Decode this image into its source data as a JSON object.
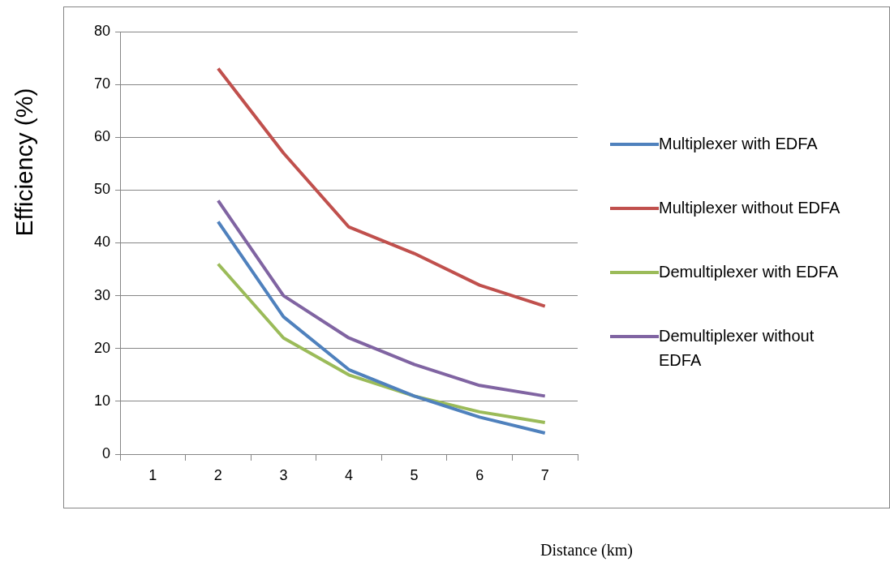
{
  "chart_data": {
    "type": "line",
    "xlabel": "Distance (km)",
    "ylabel": "Efficiency (%)",
    "categories": [
      "1",
      "2",
      "3",
      "4",
      "5",
      "6",
      "7"
    ],
    "series": [
      {
        "name": "Multiplexer with EDFA",
        "color": "#4f81bd",
        "values": [
          null,
          44,
          26,
          16,
          11,
          7,
          4
        ]
      },
      {
        "name": "Multiplexer without EDFA",
        "color": "#c0504d",
        "values": [
          null,
          73,
          57,
          43,
          38,
          32,
          28
        ]
      },
      {
        "name": "Demultiplexer with EDFA",
        "color": "#9bbb59",
        "values": [
          null,
          36,
          22,
          15,
          11,
          8,
          6
        ]
      },
      {
        "name": "Demultiplexer without EDFA",
        "color": "#8064a2",
        "values": [
          null,
          48,
          30,
          22,
          17,
          13,
          11
        ]
      }
    ],
    "ylim": [
      0,
      80
    ],
    "yticks": [
      0,
      10,
      20,
      30,
      40,
      50,
      60,
      70,
      80
    ],
    "grid": "y",
    "legend": "right",
    "marker": "none",
    "line_style": "solid"
  }
}
